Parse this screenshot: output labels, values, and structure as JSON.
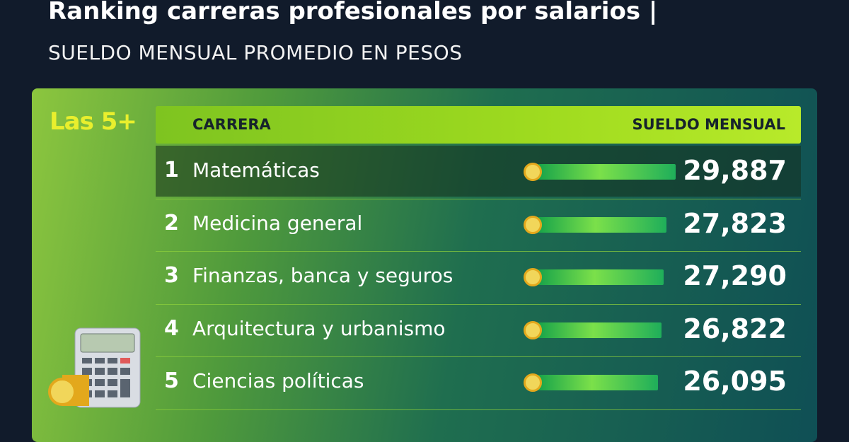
{
  "header": {
    "title": "Ranking carreras profesionales por salarios |",
    "subtitle": "SUELDO MENSUAL PROMEDIO EN PESOS"
  },
  "badge": "Las 5+",
  "table": {
    "columns": [
      "CARRERA",
      "SUELDO MENSUAL"
    ],
    "rows": [
      {
        "rank": 1,
        "career": "Matemáticas",
        "salary": 29887,
        "salary_label": "29,887"
      },
      {
        "rank": 2,
        "career": "Medicina general",
        "salary": 27823,
        "salary_label": "27,823"
      },
      {
        "rank": 3,
        "career": "Finanzas, banca y seguros",
        "salary": 27290,
        "salary_label": "27,290"
      },
      {
        "rank": 4,
        "career": "Arquitectura y urbanismo",
        "salary": 26822,
        "salary_label": "26,822"
      },
      {
        "rank": 5,
        "career": "Ciencias políticas",
        "salary": 26095,
        "salary_label": "26,095"
      }
    ]
  }
}
